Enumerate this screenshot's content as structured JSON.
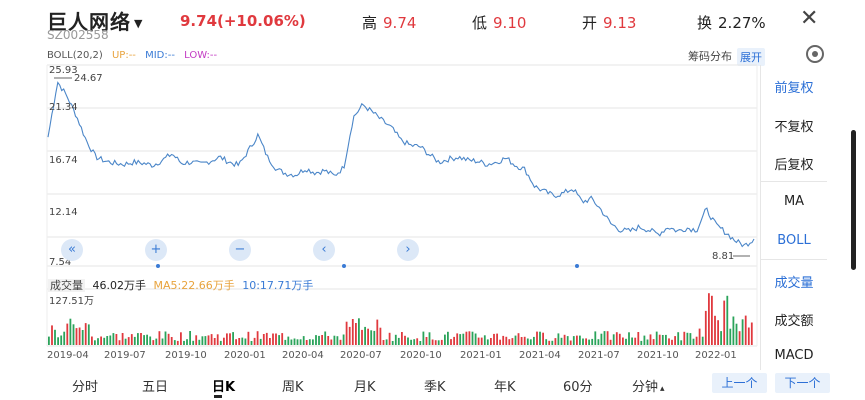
{
  "header": {
    "title": "巨人网络",
    "code": "SZ002558",
    "price": "9.74(+10.06%)",
    "high_label": "高",
    "high": "9.74",
    "low_label": "低",
    "low": "9.10",
    "open_label": "开",
    "open": "9.13",
    "turnover_label": "换",
    "turnover": "2.27%",
    "close_icon": "close-icon"
  },
  "indicator": {
    "boll": "BOLL(20,2)",
    "up": "UP:--",
    "mid": "MID:--",
    "low": "LOW:--",
    "chip_dist": "筹码分布",
    "expand": "展开"
  },
  "right_panel": {
    "items": [
      "前复权",
      "不复权",
      "后复权",
      "MA",
      "BOLL",
      "成交量",
      "成交额",
      "MACD"
    ]
  },
  "chart_data": {
    "type": "line",
    "x_ticks": [
      "2019-04",
      "2019-07",
      "2019-10",
      "2020-01",
      "2020-04",
      "2020-07",
      "2020-10",
      "2021-01",
      "2021-04",
      "2021-07",
      "2021-10",
      "2022-01"
    ],
    "y_ticks": [
      "25.93",
      "21.34",
      "16.74",
      "12.14",
      "7.54"
    ],
    "ylim": [
      7.54,
      25.93
    ],
    "annotations": {
      "max": "24.67",
      "min": "8.81"
    },
    "price_values": [
      19.5,
      24.8,
      23.4,
      21.5,
      19.2,
      17.6,
      17.2,
      17.0,
      16.9,
      17.1,
      17.0,
      16.8,
      17.3,
      17.9,
      17.0,
      17.1,
      16.9,
      17.2,
      17.6,
      17.1,
      16.8,
      18.2,
      19.7,
      17.6,
      16.4,
      16.0,
      15.9,
      16.5,
      16.1,
      16.3,
      15.8,
      16.6,
      21.4,
      22.6,
      21.9,
      21.1,
      20.4,
      19.2,
      18.7,
      18.6,
      17.8,
      17.1,
      17.4,
      17.6,
      17.3,
      17.2,
      16.9,
      17.1,
      17.5,
      16.8,
      16.4,
      14.8,
      14.3,
      13.9,
      14.1,
      14.6,
      13.3,
      13.6,
      12.5,
      11.2,
      10.6,
      10.5,
      10.9,
      10.6,
      10.2,
      10.9,
      10.5,
      10.8,
      10.6,
      12.6,
      11.1,
      10.4,
      9.6,
      9.1,
      9.74
    ],
    "volume": {
      "label": "成交量",
      "current": "46.02万手",
      "ma5": "MA5:22.66万手",
      "ma10": "10:17.71万手",
      "ymax": "127.51万"
    }
  },
  "tabs": {
    "items": [
      "分时",
      "五日",
      "日K",
      "周K",
      "月K",
      "季K",
      "年K",
      "60分",
      "分钟"
    ],
    "active": "日K",
    "minute_caret": "▴",
    "prev": "上一个",
    "next": "下一个"
  },
  "controls": {
    "rewind": "«",
    "zoom_in": "+",
    "zoom_out": "−",
    "left": "‹",
    "right": "›"
  }
}
